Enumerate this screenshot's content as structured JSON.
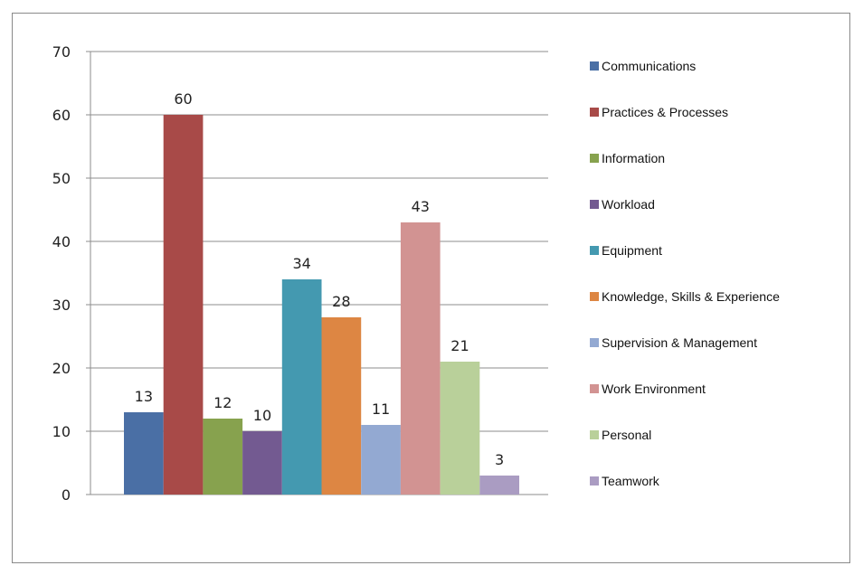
{
  "chart_data": {
    "type": "bar",
    "categories": [
      "Communications",
      "Practices & Processes",
      "Information",
      "Workload",
      "Equipment",
      "Knowledge, Skills & Experience",
      "Supervision & Management",
      "Work Environment",
      "Personal",
      "Teamwork"
    ],
    "values": [
      13,
      60,
      12,
      10,
      34,
      28,
      11,
      43,
      21,
      3
    ],
    "colors": [
      "#4a6fa5",
      "#a84a48",
      "#87a24e",
      "#735a91",
      "#4499b0",
      "#dd8643",
      "#93a9d2",
      "#d29392",
      "#b9d09a",
      "#aa9cc2"
    ],
    "title": "",
    "xlabel": "",
    "ylabel": "",
    "ylim": [
      0,
      70
    ],
    "yticks": [
      0,
      10,
      20,
      30,
      40,
      50,
      60,
      70
    ],
    "grid": true,
    "legend_position": "right",
    "data_labels": true
  }
}
